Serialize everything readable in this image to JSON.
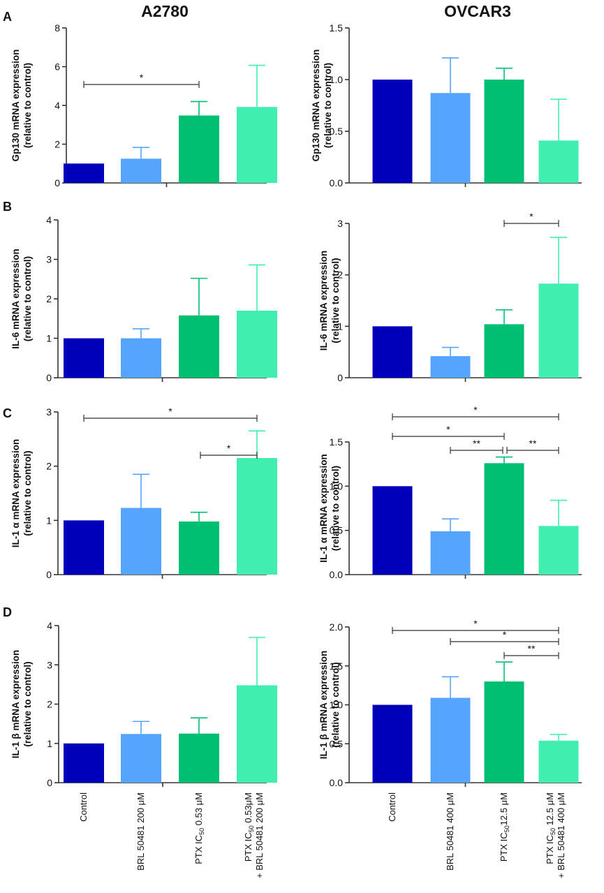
{
  "figure": {
    "columns": [
      "A2780",
      "OVCAR3"
    ],
    "ylabel_suffix": "(relative to control)",
    "xticks": {
      "A2780": [
        [
          "Control"
        ],
        [
          "BRL 50481 200 μM"
        ],
        [
          "PTX IC",
          "50",
          " 0.53 μM"
        ],
        [
          "PTX IC",
          "50",
          " 0.53μM",
          "+ BRL 50481  200 μM"
        ]
      ],
      "OVCAR3": [
        [
          "Control"
        ],
        [
          "BRL 50481 400 μM"
        ],
        [
          "PTX IC",
          "50",
          "12.5 μM"
        ],
        [
          "PTX IC",
          "50",
          " 12.5  μM",
          "+ BRL 50481  400 μM"
        ]
      ]
    }
  },
  "chart_data": [
    {
      "type": "bar",
      "panel": "A",
      "cell_line": "A2780",
      "ylabel": "Gp130 mRNA expression",
      "ylim": [
        0,
        8
      ],
      "yticks": [
        "0",
        "2",
        "4",
        "6",
        "8"
      ],
      "categories": [
        "Control",
        "BRL 50481 200 μM",
        "PTX IC50 0.53 μM",
        "PTX IC50 0.53μM + BRL 50481 200 μM"
      ],
      "values": [
        1.0,
        1.25,
        3.48,
        3.92
      ],
      "errors": [
        0,
        0.58,
        0.72,
        2.15
      ],
      "significance": [
        {
          "from": 0,
          "to": 2,
          "label": "*"
        }
      ]
    },
    {
      "type": "bar",
      "panel": "A",
      "cell_line": "OVCAR3",
      "ylabel": "Gp130 mRNA expression",
      "ylim": [
        0,
        1.5
      ],
      "yticks": [
        "0.0",
        "0.5",
        "1.0",
        "1.5"
      ],
      "categories": [
        "Control",
        "BRL 50481 400 μM",
        "PTX IC50 12.5 μM",
        "PTX IC50 12.5 μM + BRL 50481 400 μM"
      ],
      "values": [
        1.0,
        0.87,
        1.0,
        0.41
      ],
      "errors": [
        0,
        0.34,
        0.11,
        0.4
      ],
      "significance": []
    },
    {
      "type": "bar",
      "panel": "B",
      "cell_line": "A2780",
      "ylabel": "IL-6  mRNA expression",
      "ylim": [
        0,
        4
      ],
      "yticks": [
        "0",
        "1",
        "2",
        "3",
        "4"
      ],
      "categories": [
        "Control",
        "BRL 50481 200 μM",
        "PTX IC50 0.53 μM",
        "PTX IC50 0.53μM + BRL 50481 200 μM"
      ],
      "values": [
        1.0,
        1.0,
        1.58,
        1.7
      ],
      "errors": [
        0,
        0.24,
        0.94,
        1.16
      ],
      "significance": []
    },
    {
      "type": "bar",
      "panel": "B",
      "cell_line": "OVCAR3",
      "ylabel": "IL-6 mRNA expression",
      "ylim": [
        0,
        3
      ],
      "yticks": [
        "0",
        "1",
        "2",
        "3"
      ],
      "categories": [
        "Control",
        "BRL 50481 400 μM",
        "PTX IC50 12.5 μM",
        "PTX IC50 12.5 μM + BRL 50481 400 μM"
      ],
      "values": [
        1.0,
        0.42,
        1.04,
        1.83
      ],
      "errors": [
        0,
        0.17,
        0.28,
        0.9
      ],
      "significance": [
        {
          "from": 2,
          "to": 3,
          "label": "*"
        }
      ]
    },
    {
      "type": "bar",
      "panel": "C",
      "cell_line": "A2780",
      "ylabel": "IL-1 α  mRNA expression",
      "ylim": [
        0,
        3
      ],
      "yticks": [
        "0",
        "1",
        "2",
        "3"
      ],
      "categories": [
        "Control",
        "BRL 50481 200 μM",
        "PTX IC50 0.53 μM",
        "PTX IC50 0.53μM + BRL 50481 200 μM"
      ],
      "values": [
        1.0,
        1.23,
        0.98,
        2.15
      ],
      "errors": [
        0,
        0.62,
        0.17,
        0.5
      ],
      "significance": [
        {
          "from": 0,
          "to": 3,
          "label": "*"
        },
        {
          "from": 2,
          "to": 3,
          "label": "*"
        }
      ]
    },
    {
      "type": "bar",
      "panel": "C",
      "cell_line": "OVCAR3",
      "ylabel": "IL-1 α  mRNA expression",
      "ylim": [
        0,
        1.5
      ],
      "yticks": [
        "0.0",
        "0.5",
        "1.0",
        "1.5"
      ],
      "categories": [
        "Control",
        "BRL 50481 400 μM",
        "PTX IC50 12.5 μM",
        "PTX IC50 12.5 μM + BRL 50481 400 μM"
      ],
      "values": [
        1.0,
        0.49,
        1.26,
        0.55
      ],
      "errors": [
        0,
        0.14,
        0.07,
        0.29
      ],
      "significance": [
        {
          "from": 0,
          "to": 3,
          "label": "*"
        },
        {
          "from": 0,
          "to": 2,
          "label": "*"
        },
        {
          "from": 1,
          "to": 2,
          "label": "**"
        },
        {
          "from": 2,
          "to": 3,
          "label": "**"
        }
      ]
    },
    {
      "type": "bar",
      "panel": "D",
      "cell_line": "A2780",
      "ylabel": "IL-1 β  mRNA expression",
      "ylim": [
        0,
        4
      ],
      "yticks": [
        "0",
        "1",
        "2",
        "3",
        "4"
      ],
      "categories": [
        "Control",
        "BRL 50481 200 μM",
        "PTX IC50 0.53 μM",
        "PTX IC50 0.53μM + BRL 50481 200 μM"
      ],
      "values": [
        1.0,
        1.24,
        1.25,
        2.48
      ],
      "errors": [
        0,
        0.32,
        0.4,
        1.22
      ],
      "significance": []
    },
    {
      "type": "bar",
      "panel": "D",
      "cell_line": "OVCAR3",
      "ylabel": "IL-1 β   mRNA expression",
      "ylim": [
        0,
        2.0
      ],
      "yticks": [
        "0.0",
        "0.5",
        "1.0",
        "1.5",
        "2.0"
      ],
      "categories": [
        "Control",
        "BRL 50481 400 μM",
        "PTX IC50 12.5 μM",
        "PTX IC50 12.5 μM + BRL 50481 400 μM"
      ],
      "values": [
        1.0,
        1.09,
        1.3,
        0.54
      ],
      "errors": [
        0,
        0.27,
        0.25,
        0.08
      ],
      "significance": [
        {
          "from": 0,
          "to": 3,
          "label": "*"
        },
        {
          "from": 1,
          "to": 3,
          "label": "*"
        },
        {
          "from": 2,
          "to": 3,
          "label": "**"
        }
      ]
    }
  ],
  "colors": [
    "#0000bb",
    "#55a5ff",
    "#00bf72",
    "#40eeb0"
  ],
  "axis_color": "#333333"
}
